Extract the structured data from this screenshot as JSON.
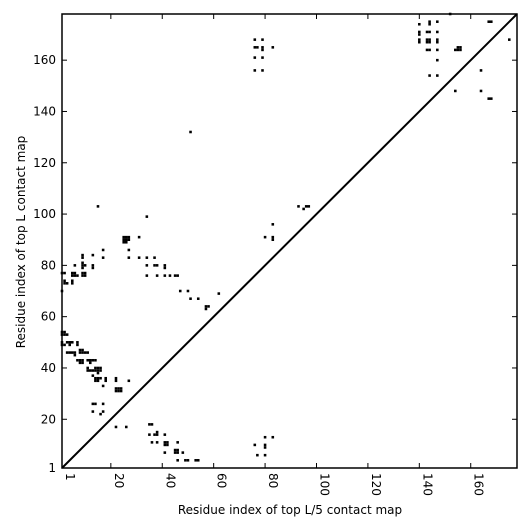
{
  "chart_data": {
    "type": "scatter",
    "title": "",
    "xlabel": "Residue index of top L/5 contact map",
    "ylabel": "Residue index of top L contact map",
    "xlim": [
      1,
      178
    ],
    "ylim": [
      1,
      178
    ],
    "x_ticks": [
      1,
      20,
      40,
      60,
      80,
      100,
      120,
      140,
      160
    ],
    "y_ticks": [
      1,
      20,
      40,
      60,
      80,
      100,
      120,
      140,
      160
    ],
    "x_tick_labels": [
      "1",
      "20",
      "40",
      "60",
      "80",
      "100",
      "120",
      "140",
      "160"
    ],
    "y_tick_labels": [
      "1",
      "20",
      "40",
      "60",
      "80",
      "100",
      "120",
      "140",
      "160"
    ],
    "x_tick_label_rotation": 90,
    "grid": false,
    "diagonal_line": true,
    "marker_color": "#000000",
    "series": [
      {
        "values": [
          [
            1,
            54
          ],
          [
            1,
            53
          ],
          [
            2,
            54
          ],
          [
            2,
            53
          ],
          [
            3,
            53
          ],
          [
            1,
            50
          ],
          [
            1,
            49
          ],
          [
            2,
            49
          ],
          [
            3,
            50
          ],
          [
            4,
            50
          ],
          [
            5,
            50
          ],
          [
            4,
            49
          ],
          [
            3,
            46
          ],
          [
            4,
            46
          ],
          [
            5,
            46
          ],
          [
            6,
            46
          ],
          [
            6,
            45
          ],
          [
            7,
            50
          ],
          [
            7,
            49
          ],
          [
            8,
            47
          ],
          [
            8,
            46
          ],
          [
            9,
            47
          ],
          [
            9,
            46
          ],
          [
            10,
            46
          ],
          [
            11,
            46
          ],
          [
            7,
            43
          ],
          [
            8,
            43
          ],
          [
            8,
            42
          ],
          [
            9,
            43
          ],
          [
            9,
            42
          ],
          [
            11,
            43
          ],
          [
            12,
            43
          ],
          [
            12,
            42
          ],
          [
            13,
            43
          ],
          [
            14,
            43
          ],
          [
            11,
            40
          ],
          [
            11,
            39
          ],
          [
            12,
            39
          ],
          [
            13,
            39
          ],
          [
            14,
            40
          ],
          [
            14,
            39
          ],
          [
            15,
            40
          ],
          [
            15,
            39
          ],
          [
            15,
            38
          ],
          [
            16,
            40
          ],
          [
            16,
            39
          ],
          [
            13,
            37
          ],
          [
            15,
            36
          ],
          [
            14,
            36
          ],
          [
            14,
            35
          ],
          [
            15,
            35
          ],
          [
            16,
            36
          ],
          [
            18,
            36
          ],
          [
            18,
            35
          ],
          [
            17,
            33
          ],
          [
            22,
            36
          ],
          [
            22,
            35
          ],
          [
            22,
            32
          ],
          [
            22,
            31
          ],
          [
            23,
            32
          ],
          [
            23,
            31
          ],
          [
            24,
            32
          ],
          [
            24,
            31
          ],
          [
            27,
            35
          ],
          [
            13,
            26
          ],
          [
            14,
            26
          ],
          [
            17,
            26
          ],
          [
            13,
            23
          ],
          [
            16,
            22
          ],
          [
            17,
            23
          ],
          [
            22,
            17
          ],
          [
            26,
            17
          ],
          [
            1,
            77
          ],
          [
            2,
            77
          ],
          [
            2,
            74
          ],
          [
            2,
            73
          ],
          [
            3,
            73
          ],
          [
            1,
            70
          ],
          [
            5,
            77
          ],
          [
            6,
            77
          ],
          [
            5,
            76
          ],
          [
            6,
            76
          ],
          [
            7,
            76
          ],
          [
            5,
            74
          ],
          [
            5,
            73
          ],
          [
            9,
            84
          ],
          [
            9,
            83
          ],
          [
            9,
            81
          ],
          [
            9,
            80
          ],
          [
            10,
            80
          ],
          [
            9,
            79
          ],
          [
            9,
            77
          ],
          [
            9,
            76
          ],
          [
            10,
            77
          ],
          [
            10,
            76
          ],
          [
            13,
            84
          ],
          [
            13,
            80
          ],
          [
            13,
            79
          ],
          [
            17,
            86
          ],
          [
            17,
            83
          ],
          [
            6,
            80
          ],
          [
            25,
            91
          ],
          [
            26,
            91
          ],
          [
            27,
            91
          ],
          [
            25,
            90
          ],
          [
            26,
            90
          ],
          [
            25,
            89
          ],
          [
            26,
            89
          ],
          [
            27,
            90
          ],
          [
            31,
            91
          ],
          [
            27,
            86
          ],
          [
            27,
            83
          ],
          [
            31,
            83
          ],
          [
            34,
            83
          ],
          [
            37,
            83
          ],
          [
            34,
            80
          ],
          [
            37,
            80
          ],
          [
            38,
            80
          ],
          [
            41,
            80
          ],
          [
            41,
            79
          ],
          [
            34,
            76
          ],
          [
            38,
            76
          ],
          [
            41,
            76
          ],
          [
            43,
            76
          ],
          [
            45,
            76
          ],
          [
            46,
            76
          ],
          [
            15,
            103
          ],
          [
            34,
            99
          ],
          [
            47,
            70
          ],
          [
            50,
            70
          ],
          [
            51,
            67
          ],
          [
            54,
            67
          ],
          [
            57,
            64
          ],
          [
            57,
            63
          ],
          [
            58,
            64
          ],
          [
            62,
            69
          ],
          [
            51,
            132
          ],
          [
            35,
            18
          ],
          [
            36,
            18
          ],
          [
            35,
            14
          ],
          [
            37,
            14
          ],
          [
            38,
            15
          ],
          [
            38,
            14
          ],
          [
            41,
            14
          ],
          [
            36,
            11
          ],
          [
            38,
            11
          ],
          [
            41,
            11
          ],
          [
            41,
            10
          ],
          [
            42,
            11
          ],
          [
            42,
            10
          ],
          [
            46,
            11
          ],
          [
            41,
            7
          ],
          [
            45,
            8
          ],
          [
            45,
            7
          ],
          [
            46,
            8
          ],
          [
            46,
            7
          ],
          [
            48,
            7
          ],
          [
            46,
            4
          ],
          [
            49,
            4
          ],
          [
            50,
            4
          ],
          [
            53,
            4
          ],
          [
            54,
            4
          ],
          [
            76,
            10
          ],
          [
            80,
            10
          ],
          [
            80,
            9
          ],
          [
            80,
            13
          ],
          [
            83,
            13
          ],
          [
            77,
            6
          ],
          [
            80,
            6
          ],
          [
            80,
            91
          ],
          [
            83,
            91
          ],
          [
            83,
            90
          ],
          [
            83,
            96
          ],
          [
            93,
            103
          ],
          [
            95,
            102
          ],
          [
            96,
            103
          ],
          [
            97,
            103
          ],
          [
            76,
            168
          ],
          [
            76,
            165
          ],
          [
            77,
            165
          ],
          [
            79,
            168
          ],
          [
            79,
            165
          ],
          [
            79,
            164
          ],
          [
            83,
            165
          ],
          [
            76,
            161
          ],
          [
            79,
            161
          ],
          [
            76,
            156
          ],
          [
            79,
            156
          ],
          [
            140,
            174
          ],
          [
            140,
            171
          ],
          [
            140,
            170
          ],
          [
            140,
            168
          ],
          [
            140,
            167
          ],
          [
            144,
            175
          ],
          [
            144,
            174
          ],
          [
            144,
            171
          ],
          [
            143,
            171
          ],
          [
            143,
            168
          ],
          [
            144,
            168
          ],
          [
            144,
            167
          ],
          [
            143,
            167
          ],
          [
            147,
            175
          ],
          [
            147,
            171
          ],
          [
            147,
            168
          ],
          [
            147,
            167
          ],
          [
            147,
            164
          ],
          [
            143,
            164
          ],
          [
            144,
            164
          ],
          [
            147,
            160
          ],
          [
            144,
            154
          ],
          [
            147,
            154
          ],
          [
            152,
            178
          ],
          [
            154,
            164
          ],
          [
            155,
            165
          ],
          [
            156,
            165
          ],
          [
            155,
            164
          ],
          [
            156,
            164
          ],
          [
            164,
            156
          ],
          [
            167,
            175
          ],
          [
            168,
            175
          ],
          [
            164,
            148
          ],
          [
            167,
            145
          ],
          [
            168,
            145
          ],
          [
            154,
            148
          ],
          [
            175,
            168
          ]
        ]
      }
    ]
  }
}
